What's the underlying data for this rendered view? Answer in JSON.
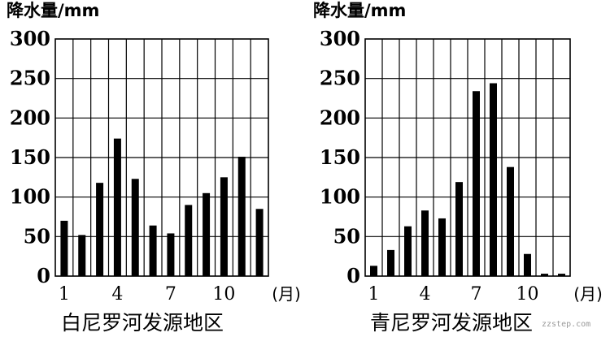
{
  "chart_data": [
    {
      "type": "bar",
      "ylabel": "降水量/mm",
      "title": "白尼罗河发源地区",
      "ylim": [
        0,
        300
      ],
      "yticks": [
        "0",
        "50",
        "100",
        "150",
        "200",
        "250",
        "300"
      ],
      "xtick_labels": [
        "1",
        "4",
        "7",
        "10"
      ],
      "xunit": "(月)",
      "categories": [
        1,
        2,
        3,
        4,
        5,
        6,
        7,
        8,
        9,
        10,
        11,
        12
      ],
      "values": [
        70,
        52,
        118,
        174,
        123,
        64,
        54,
        90,
        105,
        125,
        151,
        85
      ]
    },
    {
      "type": "bar",
      "ylabel": "降水量/mm",
      "title": "青尼罗河发源地区",
      "ylim": [
        0,
        300
      ],
      "yticks": [
        "0",
        "50",
        "100",
        "150",
        "200",
        "250",
        "300"
      ],
      "xtick_labels": [
        "1",
        "4",
        "7",
        "10"
      ],
      "xunit": "(月)",
      "categories": [
        1,
        2,
        3,
        4,
        5,
        6,
        7,
        8,
        9,
        10,
        11,
        12
      ],
      "values": [
        13,
        33,
        63,
        83,
        73,
        119,
        234,
        244,
        138,
        28,
        3,
        3
      ]
    }
  ],
  "watermark": "zzstep.com"
}
